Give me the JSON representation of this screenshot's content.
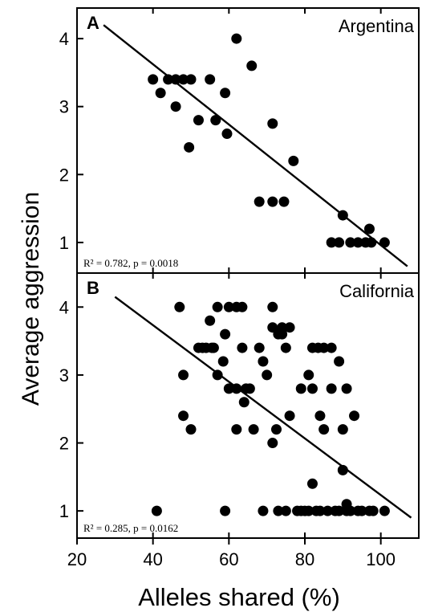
{
  "figure": {
    "ylabel": "Average aggression",
    "xlabel": "Alleles shared (%)",
    "x_ticks": [
      "20",
      "40",
      "60",
      "80",
      "100"
    ],
    "xlim": [
      20,
      110
    ]
  },
  "chart_data": [
    {
      "type": "scatter",
      "panel_letter": "A",
      "title": "Argentina",
      "ylim": [
        0.55,
        4.45
      ],
      "y_ticks": [
        "1",
        "2",
        "3",
        "4"
      ],
      "stats_text": "R² = 0.782, p = 0.0018",
      "regression": {
        "x": [
          27,
          107
        ],
        "y": [
          4.2,
          0.65
        ]
      },
      "points": [
        [
          40,
          3.4
        ],
        [
          42,
          3.2
        ],
        [
          44,
          3.4
        ],
        [
          46,
          3.4
        ],
        [
          46,
          3.0
        ],
        [
          48,
          3.4
        ],
        [
          50,
          3.4
        ],
        [
          49.5,
          2.4
        ],
        [
          52,
          2.8
        ],
        [
          55,
          3.4
        ],
        [
          56.5,
          2.8
        ],
        [
          59,
          3.2
        ],
        [
          59.5,
          2.6
        ],
        [
          62,
          4.0
        ],
        [
          66,
          3.6
        ],
        [
          68,
          1.6
        ],
        [
          71.5,
          2.75
        ],
        [
          71.5,
          1.6
        ],
        [
          74.5,
          1.6
        ],
        [
          77,
          2.2
        ],
        [
          87,
          1.0
        ],
        [
          89,
          1.0
        ],
        [
          90,
          1.4
        ],
        [
          92,
          1.0
        ],
        [
          94,
          1.0
        ],
        [
          96,
          1.0
        ],
        [
          97,
          1.2
        ],
        [
          97.5,
          1.0
        ],
        [
          101,
          1.0
        ]
      ]
    },
    {
      "type": "scatter",
      "panel_letter": "B",
      "title": "California",
      "ylim": [
        0.6,
        4.5
      ],
      "y_ticks": [
        "1",
        "2",
        "3",
        "4"
      ],
      "stats_text": "R² = 0.285, p = 0.0162",
      "regression": {
        "x": [
          30,
          108
        ],
        "y": [
          4.15,
          0.9
        ]
      },
      "points": [
        [
          41,
          1.0
        ],
        [
          47,
          4.0
        ],
        [
          48,
          3.0
        ],
        [
          48,
          2.4
        ],
        [
          50,
          2.2
        ],
        [
          52,
          3.4
        ],
        [
          53,
          3.4
        ],
        [
          54,
          3.4
        ],
        [
          55,
          3.8
        ],
        [
          55.5,
          3.4
        ],
        [
          56,
          3.4
        ],
        [
          57,
          4.0
        ],
        [
          57,
          3.0
        ],
        [
          58.5,
          3.2
        ],
        [
          59,
          3.6
        ],
        [
          59,
          1.0
        ],
        [
          60,
          4.0
        ],
        [
          60,
          2.8
        ],
        [
          62,
          4.0
        ],
        [
          62,
          2.8
        ],
        [
          62,
          2.2
        ],
        [
          63.5,
          4.0
        ],
        [
          63.5,
          3.4
        ],
        [
          64,
          2.6
        ],
        [
          64.5,
          2.8
        ],
        [
          65.5,
          2.8
        ],
        [
          66.5,
          2.2
        ],
        [
          68,
          3.4
        ],
        [
          69,
          3.2
        ],
        [
          69,
          1.0
        ],
        [
          70,
          3.0
        ],
        [
          71.5,
          4.0
        ],
        [
          71.5,
          3.7
        ],
        [
          71.5,
          2.0
        ],
        [
          72.5,
          2.2
        ],
        [
          73,
          3.6
        ],
        [
          73,
          1.0
        ],
        [
          74,
          3.7
        ],
        [
          74,
          3.6
        ],
        [
          75,
          3.4
        ],
        [
          75,
          1.0
        ],
        [
          76,
          3.7
        ],
        [
          76,
          2.4
        ],
        [
          78,
          1.0
        ],
        [
          79,
          2.8
        ],
        [
          79,
          1.0
        ],
        [
          80,
          1.0
        ],
        [
          81,
          3.0
        ],
        [
          81,
          1.0
        ],
        [
          82,
          3.4
        ],
        [
          82,
          2.8
        ],
        [
          82,
          1.4
        ],
        [
          83,
          1.0
        ],
        [
          83.5,
          3.4
        ],
        [
          84,
          2.4
        ],
        [
          84,
          1.0
        ],
        [
          85,
          3.4
        ],
        [
          85,
          2.2
        ],
        [
          86,
          1.0
        ],
        [
          87,
          3.4
        ],
        [
          87,
          2.8
        ],
        [
          88,
          1.0
        ],
        [
          89,
          3.2
        ],
        [
          89,
          1.0
        ],
        [
          90,
          2.2
        ],
        [
          90,
          1.6
        ],
        [
          91,
          2.8
        ],
        [
          91,
          1.1
        ],
        [
          91,
          1.0
        ],
        [
          92,
          1.0
        ],
        [
          93,
          2.4
        ],
        [
          94,
          1.0
        ],
        [
          95,
          1.0
        ],
        [
          97,
          1.0
        ],
        [
          98,
          1.0
        ],
        [
          101,
          1.0
        ]
      ]
    }
  ]
}
